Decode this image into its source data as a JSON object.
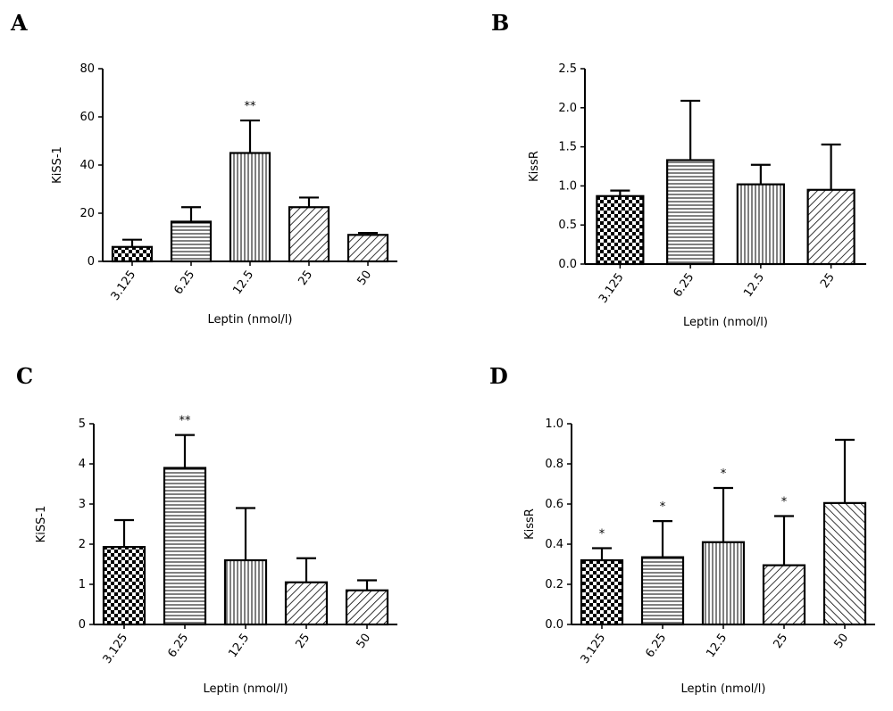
{
  "colors": {
    "ink": "#000000",
    "background": "#ffffff"
  },
  "chart_data": [
    {
      "panel": "A",
      "type": "bar",
      "ylabel": "KiSS-1",
      "xlabel": "Leptin (nmol/l)",
      "categories": [
        "3.125",
        "6.25",
        "12.5",
        "25",
        "50"
      ],
      "values": [
        6,
        16.5,
        45,
        22.5,
        11
      ],
      "errors": [
        3,
        6,
        13.5,
        4,
        0.8
      ],
      "significance": [
        "",
        "",
        "**",
        "",
        ""
      ],
      "patterns": [
        "checker",
        "horizontal",
        "vertical",
        "diag-right",
        "diag-right"
      ],
      "ylim": [
        0,
        80
      ],
      "yticks": [
        "0",
        "20",
        "40",
        "60",
        "80"
      ]
    },
    {
      "panel": "B",
      "type": "bar",
      "ylabel": "KissR",
      "xlabel": "Leptin (nmol/l)",
      "categories": [
        "3.125",
        "6.25",
        "12.5",
        "25"
      ],
      "values": [
        0.87,
        1.33,
        1.02,
        0.95
      ],
      "errors": [
        0.07,
        0.76,
        0.25,
        0.58
      ],
      "significance": [
        "",
        "",
        "",
        ""
      ],
      "patterns": [
        "checker",
        "horizontal",
        "vertical",
        "diag-right"
      ],
      "ylim": [
        0,
        2.5
      ],
      "yticks": [
        "0.0",
        "0.5",
        "1.0",
        "1.5",
        "2.0",
        "2.5"
      ]
    },
    {
      "panel": "C",
      "type": "bar",
      "ylabel": "KiSS-1",
      "xlabel": "Leptin (nmol/l)",
      "categories": [
        "3.125",
        "6.25",
        "12.5",
        "25",
        "50"
      ],
      "values": [
        1.93,
        3.9,
        1.6,
        1.05,
        0.85
      ],
      "errors": [
        0.67,
        0.82,
        1.3,
        0.6,
        0.25
      ],
      "significance": [
        "",
        "**",
        "",
        "",
        ""
      ],
      "patterns": [
        "checker",
        "horizontal",
        "vertical",
        "diag-right",
        "diag-right"
      ],
      "ylim": [
        0,
        5
      ],
      "yticks": [
        "0",
        "1",
        "2",
        "3",
        "4",
        "5"
      ]
    },
    {
      "panel": "D",
      "type": "bar",
      "ylabel": "KissR",
      "xlabel": "Leptin (nmol/l)",
      "categories": [
        "3.125",
        "6.25",
        "12.5",
        "25",
        "50"
      ],
      "values": [
        0.32,
        0.335,
        0.41,
        0.295,
        0.605
      ],
      "errors": [
        0.06,
        0.18,
        0.27,
        0.245,
        0.315
      ],
      "significance": [
        "*",
        "*",
        "*",
        "*",
        ""
      ],
      "patterns": [
        "checker",
        "horizontal",
        "vertical",
        "diag-right",
        "diag-left"
      ],
      "ylim": [
        0,
        1.0
      ],
      "yticks": [
        "0.0",
        "0.2",
        "0.4",
        "0.6",
        "0.8",
        "1.0"
      ]
    }
  ]
}
